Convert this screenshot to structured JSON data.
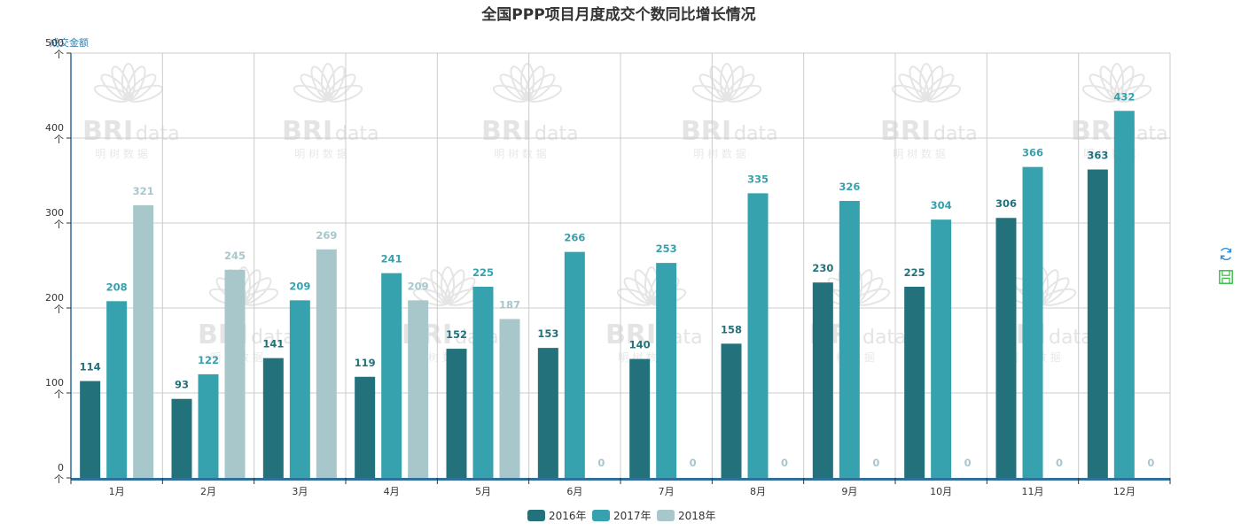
{
  "chart_data": {
    "type": "bar",
    "title": "全国PPP项目月度成交个数同比增长情况",
    "ylabel": "成交金额",
    "ylim": [
      0,
      500
    ],
    "yticks": [
      {
        "value": 0,
        "label": "0",
        "unit": "个"
      },
      {
        "value": 100,
        "label": "100",
        "unit": "个"
      },
      {
        "value": 200,
        "label": "200",
        "unit": "个"
      },
      {
        "value": 300,
        "label": "300",
        "unit": "个"
      },
      {
        "value": 400,
        "label": "400",
        "unit": "个"
      },
      {
        "value": 500,
        "label": "500",
        "unit": "个"
      }
    ],
    "categories": [
      "1月",
      "2月",
      "3月",
      "4月",
      "5月",
      "6月",
      "7月",
      "8月",
      "9月",
      "10月",
      "11月",
      "12月"
    ],
    "series": [
      {
        "name": "2016年",
        "color": "#23727b",
        "values": [
          114,
          93,
          141,
          119,
          152,
          153,
          140,
          158,
          230,
          225,
          306,
          363
        ]
      },
      {
        "name": "2017年",
        "color": "#35a2ad",
        "values": [
          208,
          122,
          209,
          241,
          225,
          266,
          253,
          335,
          326,
          304,
          366,
          432
        ]
      },
      {
        "name": "2018年",
        "color": "#a7c7cb",
        "values": [
          321,
          245,
          269,
          209,
          187,
          0,
          0,
          0,
          0,
          0,
          0,
          0
        ]
      }
    ],
    "grid": true,
    "legend": "bottom-center"
  },
  "watermark": {
    "brand": "BRI",
    "suffix": "data",
    "sub": "明 树 数 据"
  },
  "toolbox": {
    "refresh_icon": "refresh-icon",
    "save_icon": "save-image-icon",
    "refresh_color": "#2e8fd8",
    "save_color": "#3cbf4a"
  }
}
